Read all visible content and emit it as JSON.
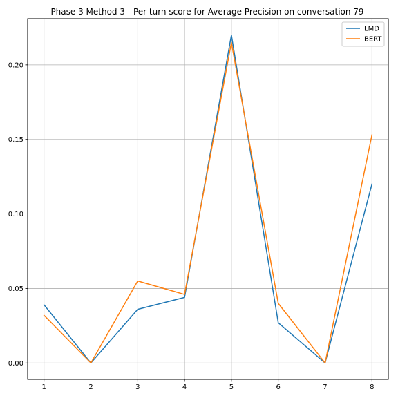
{
  "chart_data": {
    "type": "line",
    "title": "Phase 3 Method 3 - Per turn score for Average Precision on conversation 79",
    "xlabel": "",
    "ylabel": "",
    "x": [
      1,
      2,
      3,
      4,
      5,
      6,
      7,
      8
    ],
    "xticks": [
      "1",
      "2",
      "3",
      "4",
      "5",
      "6",
      "7",
      "8"
    ],
    "yticks": [
      "0.00",
      "0.05",
      "0.10",
      "0.15",
      "0.20"
    ],
    "ytick_values": [
      0,
      0.05,
      0.1,
      0.15,
      0.2
    ],
    "xlim": [
      0.65,
      8.35
    ],
    "ylim": [
      -0.011,
      0.231
    ],
    "grid": true,
    "legend": "top-right",
    "series": [
      {
        "name": "LMD",
        "color": "#1f77b4",
        "values": [
          0.039,
          0.0,
          0.036,
          0.044,
          0.22,
          0.027,
          0.0,
          0.12
        ]
      },
      {
        "name": "BERT",
        "color": "#ff7f0e",
        "values": [
          0.032,
          0.0,
          0.055,
          0.046,
          0.215,
          0.04,
          0.0,
          0.153
        ]
      }
    ]
  }
}
